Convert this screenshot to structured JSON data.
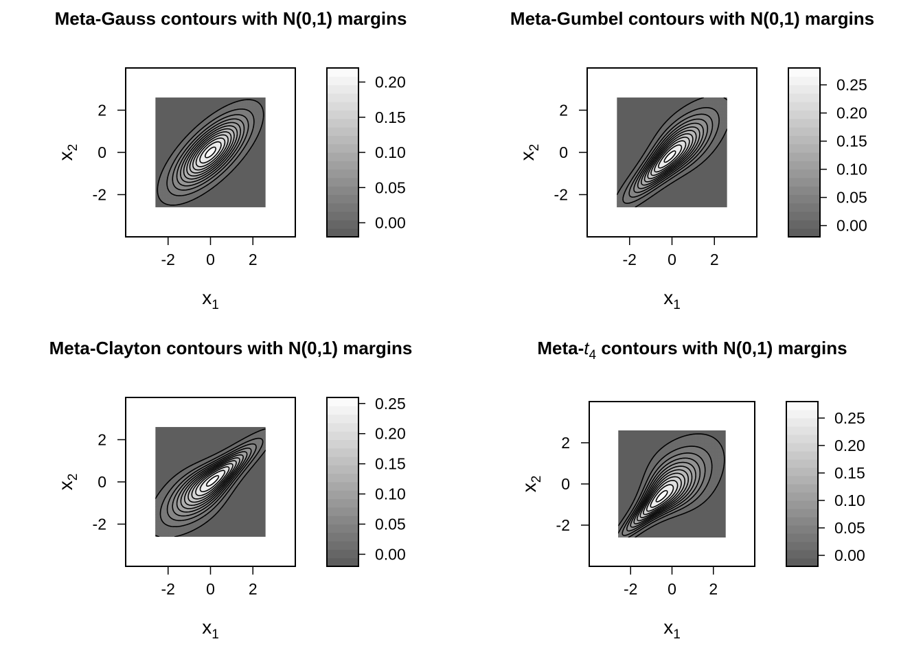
{
  "chart_data": [
    {
      "type": "heatmap",
      "title": "Meta-Gauss contours with N(0,1) margins",
      "xlabel": "x",
      "xlabel_sub": "1",
      "ylabel": "x",
      "ylabel_sub": "2",
      "xlim": [
        -4,
        4
      ],
      "ylim": [
        -4,
        4
      ],
      "x_ticks": [
        -2,
        0,
        2
      ],
      "y_ticks": [
        -2,
        0,
        2
      ],
      "x_tick_labels": [
        "-2",
        "0",
        "2"
      ],
      "y_tick_labels": [
        "-2",
        "0",
        "2"
      ],
      "grid": false,
      "density_extent": [
        -2.6,
        2.6
      ],
      "background_color": "#5e5e5e",
      "legend": {
        "position": "right",
        "levels": [
          -0.02,
          0.22
        ],
        "ticks": [
          0.0,
          0.05,
          0.1,
          0.15,
          0.2
        ],
        "tick_labels": [
          "0.00",
          "0.05",
          "0.10",
          "0.15",
          "0.20"
        ]
      },
      "contours": {
        "center": [
          0,
          0
        ],
        "rotation_deg": 45,
        "major_sd": 1.34,
        "minor_sd": 0.55,
        "skew": 0,
        "outer_level": 0.011,
        "max_density": 0.216,
        "n_levels": 12
      }
    },
    {
      "type": "heatmap",
      "title": "Meta-Gumbel contours with N(0,1) margins",
      "xlabel": "x",
      "xlabel_sub": "1",
      "ylabel": "x",
      "ylabel_sub": "2",
      "xlim": [
        -4,
        4
      ],
      "ylim": [
        -4,
        4
      ],
      "x_ticks": [
        -2,
        0,
        2
      ],
      "y_ticks": [
        -2,
        0,
        2
      ],
      "x_tick_labels": [
        "-2",
        "0",
        "2"
      ],
      "y_tick_labels": [
        "-2",
        "0",
        "2"
      ],
      "grid": false,
      "density_extent": [
        -2.6,
        2.6
      ],
      "background_color": "#5e5e5e",
      "legend": {
        "position": "right",
        "levels": [
          -0.02,
          0.28
        ],
        "ticks": [
          0.0,
          0.05,
          0.1,
          0.15,
          0.2,
          0.25
        ],
        "tick_labels": [
          "0.00",
          "0.05",
          "0.10",
          "0.15",
          "0.20",
          "0.25"
        ]
      },
      "contours": {
        "center": [
          -0.1,
          -0.2
        ],
        "rotation_deg": 45,
        "major_sd": 1.5,
        "minor_sd": 0.45,
        "skew": 0.3,
        "outer_level": 0.011,
        "max_density": 0.275,
        "n_levels": 12
      }
    },
    {
      "type": "heatmap",
      "title": "Meta-Clayton contours with N(0,1) margins",
      "xlabel": "x",
      "xlabel_sub": "1",
      "ylabel": "x",
      "ylabel_sub": "2",
      "xlim": [
        -4,
        4
      ],
      "ylim": [
        -4,
        4
      ],
      "x_ticks": [
        -2,
        0,
        2
      ],
      "y_ticks": [
        -2,
        0,
        2
      ],
      "x_tick_labels": [
        "-2",
        "0",
        "2"
      ],
      "y_tick_labels": [
        "-2",
        "0",
        "2"
      ],
      "grid": false,
      "density_extent": [
        -2.6,
        2.6
      ],
      "background_color": "#5e5e5e",
      "legend": {
        "position": "right",
        "levels": [
          -0.02,
          0.26
        ],
        "ticks": [
          0.0,
          0.05,
          0.1,
          0.15,
          0.2,
          0.25
        ],
        "tick_labels": [
          "0.00",
          "0.05",
          "0.10",
          "0.15",
          "0.20",
          "0.25"
        ]
      },
      "contours": {
        "center": [
          0.1,
          0.05
        ],
        "rotation_deg": 40,
        "major_sd": 1.5,
        "minor_sd": 0.45,
        "skew": -0.35,
        "outer_level": 0.011,
        "max_density": 0.26,
        "n_levels": 12
      }
    },
    {
      "type": "heatmap",
      "title_prefix": "Meta-",
      "title_italic": "t",
      "title_italic_sub": "4",
      "title_suffix": " contours with N(0,1) margins",
      "xlabel": "x",
      "xlabel_sub": "1",
      "ylabel": "x",
      "ylabel_sub": "2",
      "xlim": [
        -4,
        4
      ],
      "ylim": [
        -4,
        4
      ],
      "x_ticks": [
        -2,
        0,
        2
      ],
      "y_ticks": [
        -2,
        0,
        2
      ],
      "x_tick_labels": [
        "-2",
        "0",
        "2"
      ],
      "y_tick_labels": [
        "-2",
        "0",
        "2"
      ],
      "grid": false,
      "density_extent": [
        -2.6,
        2.6
      ],
      "background_color": "#5e5e5e",
      "legend": {
        "position": "right",
        "levels": [
          -0.02,
          0.28
        ],
        "ticks": [
          0.0,
          0.05,
          0.1,
          0.15,
          0.2,
          0.25
        ],
        "tick_labels": [
          "0.00",
          "0.05",
          "0.10",
          "0.15",
          "0.20",
          "0.25"
        ]
      },
      "contours": {
        "center": [
          -0.5,
          -0.6
        ],
        "rotation_deg": 45,
        "major_sd": 1.5,
        "minor_sd": 0.5,
        "skew": 0.55,
        "outer_level": 0.011,
        "max_density": 0.28,
        "n_levels": 12
      }
    }
  ]
}
